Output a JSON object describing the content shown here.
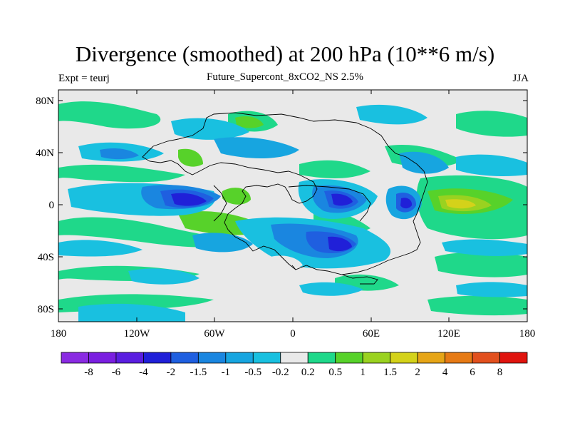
{
  "title": "Divergence (smoothed) at 200 hPa (10**6 m/s)",
  "left_string": "Expt = teurj",
  "center_string": "Future_Supercont_8xCO2_NS 2.5%",
  "right_string": "JJA",
  "y_ticks": [
    "80N",
    "40N",
    "0",
    "40S",
    "80S"
  ],
  "x_ticks": [
    "180",
    "120W",
    "60W",
    "0",
    "60E",
    "120E",
    "180"
  ],
  "colorbar": {
    "labels": [
      "-8",
      "-6",
      "-4",
      "-2",
      "-1.5",
      "-1",
      "-0.5",
      "-0.2",
      "0.2",
      "0.5",
      "1",
      "1.5",
      "2",
      "4",
      "6",
      "8"
    ],
    "colors": [
      "#8a2be2",
      "#7a1fe0",
      "#5a1ee0",
      "#2020d8",
      "#1f5fe0",
      "#1a86e0",
      "#17a5e0",
      "#19c0e0",
      "#e9e9e9",
      "#1fd88a",
      "#57d22a",
      "#9ad220",
      "#d4d21a",
      "#e6a517",
      "#e67a15",
      "#e2501e",
      "#e0140e"
    ]
  }
}
